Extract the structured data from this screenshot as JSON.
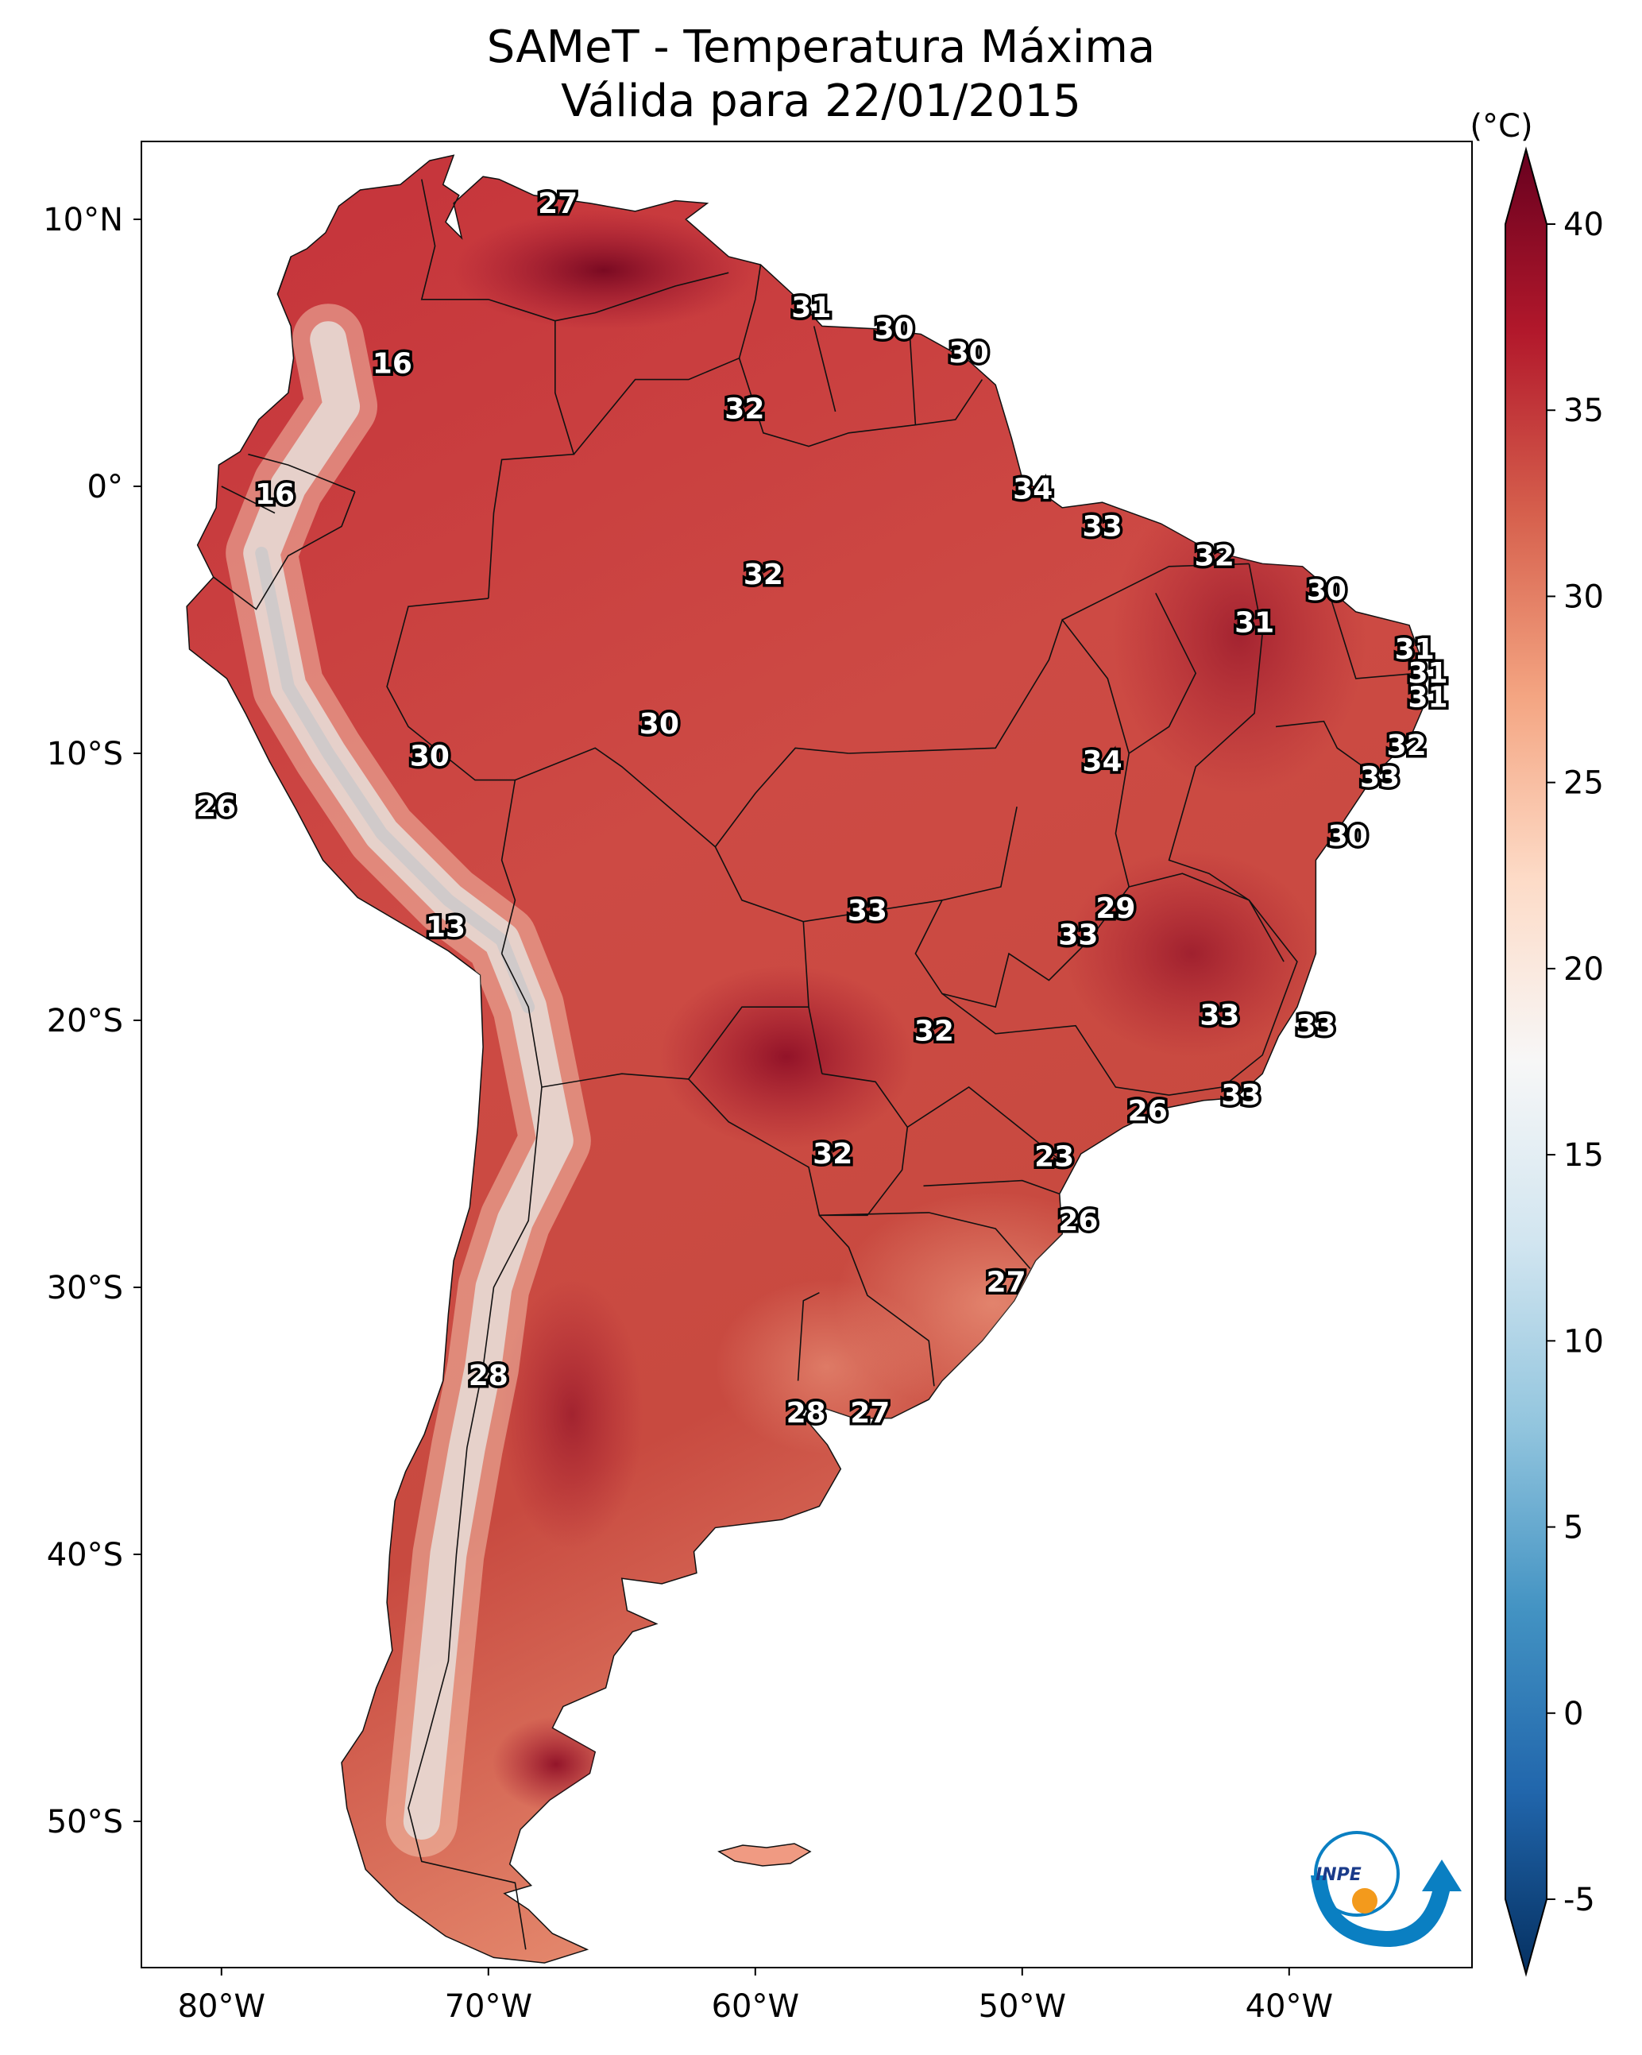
{
  "title": {
    "line1": "SAMeT - Temperatura Máxima",
    "line2": "Válida para 22/01/2015"
  },
  "axes": {
    "lon_ticks": [
      "80°W",
      "70°W",
      "60°W",
      "50°W",
      "40°W"
    ],
    "lat_ticks": [
      "10°N",
      "0°",
      "10°S",
      "20°S",
      "30°S",
      "40°S",
      "50°S"
    ]
  },
  "colorbar": {
    "unit": "(°C)",
    "ticks": [
      "40",
      "35",
      "30",
      "25",
      "20",
      "15",
      "10",
      "5",
      "0",
      "-5"
    ],
    "colors": [
      "#67001f",
      "#b2182b",
      "#d6604d",
      "#f4a582",
      "#fddbc7",
      "#f7f7f7",
      "#d1e5f0",
      "#92c5de",
      "#4393c3",
      "#2166ac",
      "#053061"
    ]
  },
  "logo": {
    "text": "INPE"
  },
  "isotherm_labels": [
    {
      "value": "27",
      "lon": -67.4,
      "lat": 10.6
    },
    {
      "value": "31",
      "lon": -57.9,
      "lat": 6.7
    },
    {
      "value": "30",
      "lon": -54.8,
      "lat": 5.9
    },
    {
      "value": "30",
      "lon": -52.0,
      "lat": 5.0
    },
    {
      "value": "16",
      "lon": -73.6,
      "lat": 4.6
    },
    {
      "value": "32",
      "lon": -60.4,
      "lat": 2.9
    },
    {
      "value": "16",
      "lon": -78.0,
      "lat": -0.3
    },
    {
      "value": "34",
      "lon": -49.6,
      "lat": -0.1
    },
    {
      "value": "33",
      "lon": -47.0,
      "lat": -1.5
    },
    {
      "value": "32",
      "lon": -42.8,
      "lat": -2.6
    },
    {
      "value": "32",
      "lon": -59.7,
      "lat": -3.3
    },
    {
      "value": "30",
      "lon": -38.6,
      "lat": -3.9
    },
    {
      "value": "31",
      "lon": -41.3,
      "lat": -5.1
    },
    {
      "value": "31",
      "lon": -35.3,
      "lat": -6.1
    },
    {
      "value": "31",
      "lon": -34.8,
      "lat": -7.0
    },
    {
      "value": "31",
      "lon": -34.8,
      "lat": -7.9
    },
    {
      "value": "30",
      "lon": -63.6,
      "lat": -8.9
    },
    {
      "value": "32",
      "lon": -35.6,
      "lat": -9.7
    },
    {
      "value": "30",
      "lon": -72.2,
      "lat": -10.1
    },
    {
      "value": "34",
      "lon": -47.0,
      "lat": -10.3
    },
    {
      "value": "33",
      "lon": -36.6,
      "lat": -10.9
    },
    {
      "value": "26",
      "lon": -80.2,
      "lat": -12.0
    },
    {
      "value": "30",
      "lon": -37.8,
      "lat": -13.1
    },
    {
      "value": "29",
      "lon": -46.5,
      "lat": -15.8
    },
    {
      "value": "33",
      "lon": -55.8,
      "lat": -15.9
    },
    {
      "value": "33",
      "lon": -47.9,
      "lat": -16.8
    },
    {
      "value": "13",
      "lon": -71.6,
      "lat": -16.5
    },
    {
      "value": "33",
      "lon": -42.6,
      "lat": -19.8
    },
    {
      "value": "33",
      "lon": -39.0,
      "lat": -20.2
    },
    {
      "value": "32",
      "lon": -53.3,
      "lat": -20.4
    },
    {
      "value": "33",
      "lon": -41.8,
      "lat": -22.8
    },
    {
      "value": "26",
      "lon": -45.3,
      "lat": -23.4
    },
    {
      "value": "32",
      "lon": -57.1,
      "lat": -25.0
    },
    {
      "value": "23",
      "lon": -48.8,
      "lat": -25.1
    },
    {
      "value": "26",
      "lon": -47.9,
      "lat": -27.5
    },
    {
      "value": "27",
      "lon": -50.6,
      "lat": -29.8
    },
    {
      "value": "28",
      "lon": -70.0,
      "lat": -33.3
    },
    {
      "value": "28",
      "lon": -58.1,
      "lat": -34.7
    },
    {
      "value": "27",
      "lon": -55.7,
      "lat": -34.7
    }
  ]
}
